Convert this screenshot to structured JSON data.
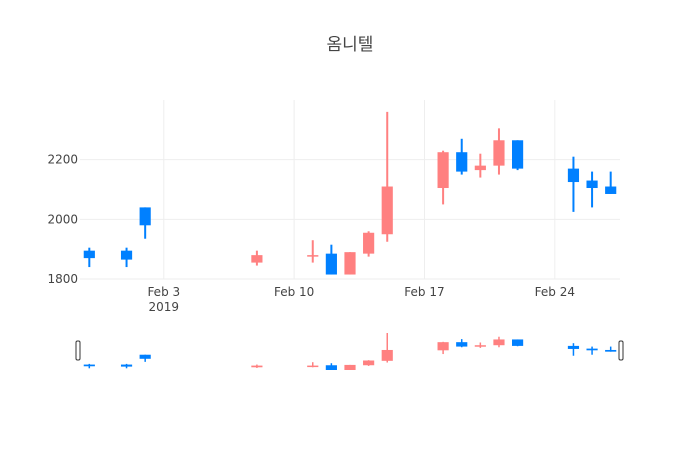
{
  "chart_data": {
    "type": "candlestick",
    "title": "옴니텔",
    "ylim": [
      1800,
      2400
    ],
    "y_ticks": [
      1800,
      2000,
      2200
    ],
    "x_ticks": [
      {
        "date": "2019-02-03",
        "label": "Feb 3",
        "sublabel": "2019"
      },
      {
        "date": "2019-02-10",
        "label": "Feb 10",
        "sublabel": ""
      },
      {
        "date": "2019-02-17",
        "label": "Feb 17",
        "sublabel": ""
      },
      {
        "date": "2019-02-24",
        "label": "Feb 24",
        "sublabel": ""
      }
    ],
    "xlim": [
      "2019-01-29T12:00",
      "2019-02-27T12:00"
    ],
    "colors": {
      "increasing": "#ff8080",
      "decreasing": "#0080ff",
      "grid": "#eeeeee",
      "text": "#444444"
    },
    "rangeslider": true,
    "grid": true,
    "candles": [
      {
        "date": "2019-01-30",
        "open": 1895,
        "high": 1905,
        "low": 1840,
        "close": 1870
      },
      {
        "date": "2019-02-01",
        "open": 1895,
        "high": 1905,
        "low": 1840,
        "close": 1865
      },
      {
        "date": "2019-02-02",
        "open": 2040,
        "high": 2040,
        "low": 1935,
        "close": 1980
      },
      {
        "date": "2019-02-08",
        "open": 1855,
        "high": 1895,
        "low": 1845,
        "close": 1880
      },
      {
        "date": "2019-02-11",
        "open": 1875,
        "high": 1930,
        "low": 1855,
        "close": 1880
      },
      {
        "date": "2019-02-12",
        "open": 1885,
        "high": 1915,
        "low": 1815,
        "close": 1815
      },
      {
        "date": "2019-02-13",
        "open": 1815,
        "high": 1890,
        "low": 1815,
        "close": 1890
      },
      {
        "date": "2019-02-14",
        "open": 1885,
        "high": 1960,
        "low": 1875,
        "close": 1955
      },
      {
        "date": "2019-02-15",
        "open": 1950,
        "high": 2360,
        "low": 1925,
        "close": 2110
      },
      {
        "date": "2019-02-18",
        "open": 2105,
        "high": 2230,
        "low": 2050,
        "close": 2225
      },
      {
        "date": "2019-02-19",
        "open": 2225,
        "high": 2270,
        "low": 2150,
        "close": 2160
      },
      {
        "date": "2019-02-20",
        "open": 2165,
        "high": 2220,
        "low": 2140,
        "close": 2180
      },
      {
        "date": "2019-02-21",
        "open": 2180,
        "high": 2305,
        "low": 2150,
        "close": 2265
      },
      {
        "date": "2019-02-22",
        "open": 2265,
        "high": 2265,
        "low": 2165,
        "close": 2170
      },
      {
        "date": "2019-02-25",
        "open": 2170,
        "high": 2210,
        "low": 2025,
        "close": 2125
      },
      {
        "date": "2019-02-26",
        "open": 2130,
        "high": 2160,
        "low": 2040,
        "close": 2105
      },
      {
        "date": "2019-02-27",
        "open": 2110,
        "high": 2160,
        "low": 2085,
        "close": 2085
      }
    ]
  }
}
